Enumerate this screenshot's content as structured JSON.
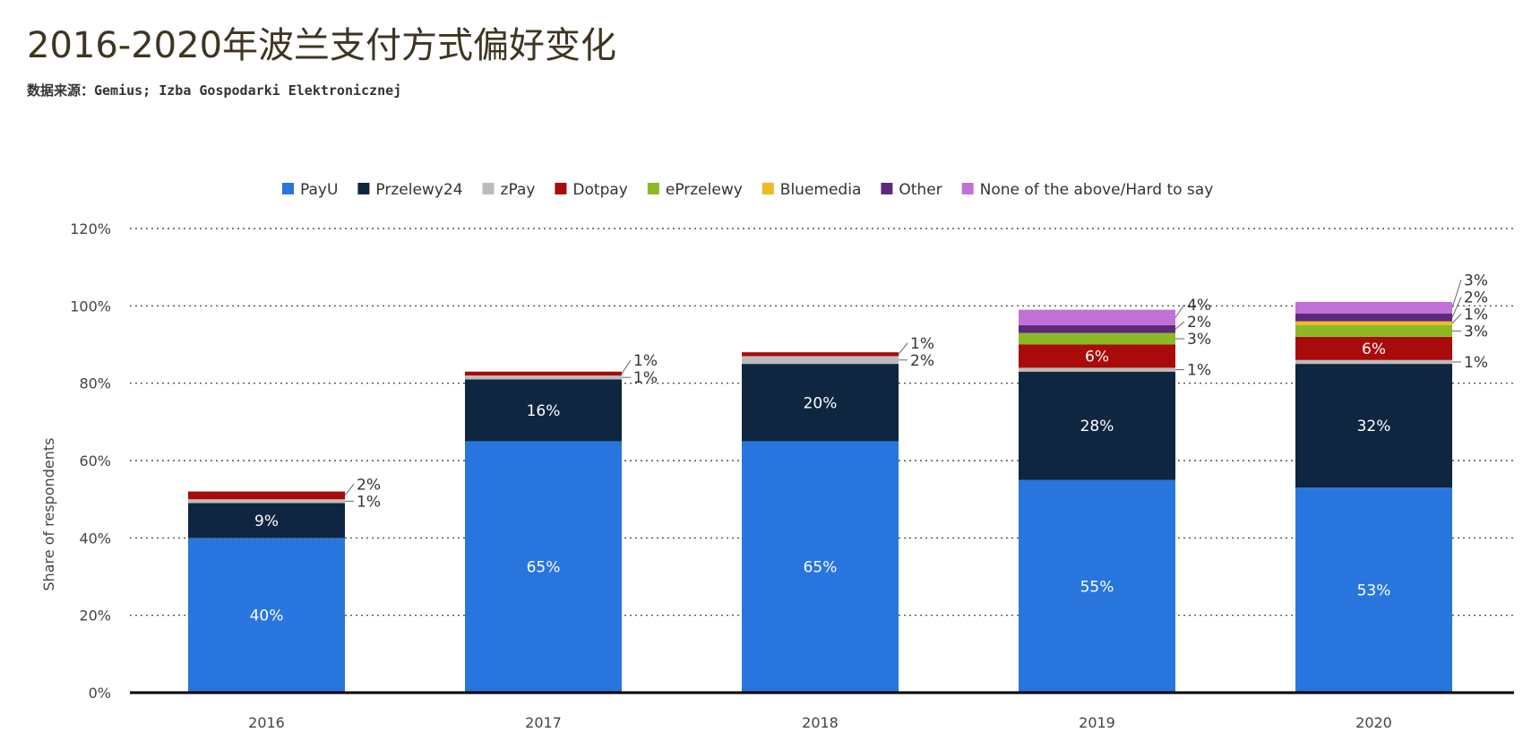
{
  "title": "2016-2020年波兰支付方式偏好变化",
  "subtitle": "数据来源：Gemius; Izba Gospodarki Elektronicznej",
  "chart_data": {
    "type": "bar",
    "stacked": true,
    "categories": [
      "2016",
      "2017",
      "2018",
      "2019",
      "2020"
    ],
    "ylabel": "Share of respondents",
    "xlabel": "",
    "ylim": [
      0,
      120
    ],
    "yticks": [
      0,
      20,
      40,
      60,
      80,
      100,
      120
    ],
    "ytick_labels": [
      "0%",
      "20%",
      "40%",
      "60%",
      "80%",
      "100%",
      "120%"
    ],
    "grid": true,
    "legend_position": "top",
    "series": [
      {
        "name": "PayU",
        "color": "#2876dd",
        "values": [
          40,
          65,
          65,
          55,
          53
        ]
      },
      {
        "name": "Przelewy24",
        "color": "#0f2640",
        "values": [
          9,
          16,
          20,
          28,
          32
        ]
      },
      {
        "name": "zPay",
        "color": "#bcbcbc",
        "values": [
          1,
          1,
          2,
          1,
          1
        ]
      },
      {
        "name": "Dotpay",
        "color": "#a90a0a",
        "values": [
          2,
          1,
          1,
          6,
          6
        ]
      },
      {
        "name": "ePrzelewy",
        "color": "#8bba25",
        "values": [
          0,
          0,
          0,
          3,
          3
        ]
      },
      {
        "name": "Bluemedia",
        "color": "#f2b824",
        "values": [
          0,
          0,
          0,
          0,
          1
        ]
      },
      {
        "name": "Other",
        "color": "#5c2a7a",
        "values": [
          0,
          0,
          0,
          2,
          2
        ]
      },
      {
        "name": "None of the above/Hard to say",
        "color": "#c170d8",
        "values": [
          0,
          0,
          0,
          4,
          3
        ]
      }
    ]
  }
}
